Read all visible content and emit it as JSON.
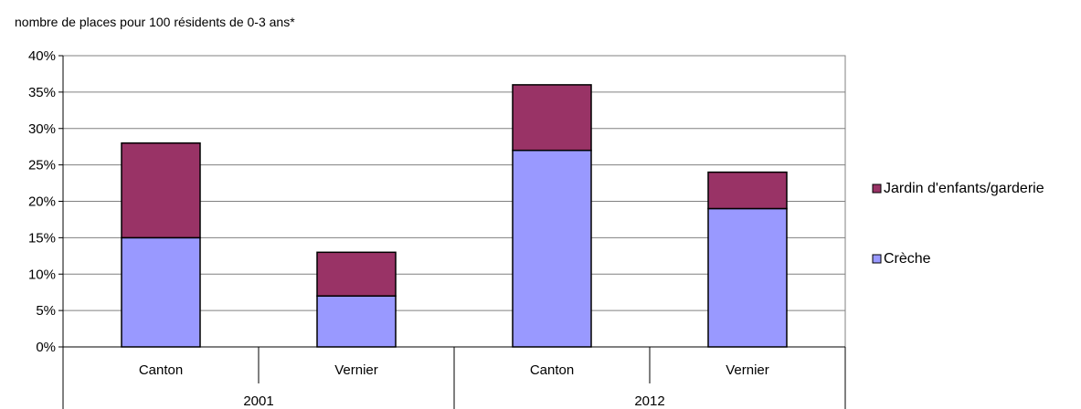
{
  "chart_data": {
    "type": "bar",
    "stacked": true,
    "title": "nombre de places pour 100 résidents de 0-3 ans*",
    "categories": [
      "Canton",
      "Vernier",
      "Canton",
      "Vernier"
    ],
    "groups": [
      {
        "label": "2001",
        "categories": [
          "Canton",
          "Vernier"
        ]
      },
      {
        "label": "2012",
        "categories": [
          "Canton",
          "Vernier"
        ]
      }
    ],
    "series": [
      {
        "name": "Crèche",
        "color": "#9999ff",
        "values": [
          15,
          7,
          27,
          19
        ]
      },
      {
        "name": "Jardin d'enfants/garderie",
        "color": "#993366",
        "values": [
          13,
          6,
          9,
          5
        ]
      }
    ],
    "y_ticks": [
      "0%",
      "5%",
      "10%",
      "15%",
      "20%",
      "25%",
      "30%",
      "35%",
      "40%"
    ],
    "ylim": [
      0,
      40
    ],
    "y_unit": "%",
    "grid": true,
    "legend_position": "right",
    "legend_order": [
      "Jardin d'enfants/garderie",
      "Crèche"
    ]
  }
}
